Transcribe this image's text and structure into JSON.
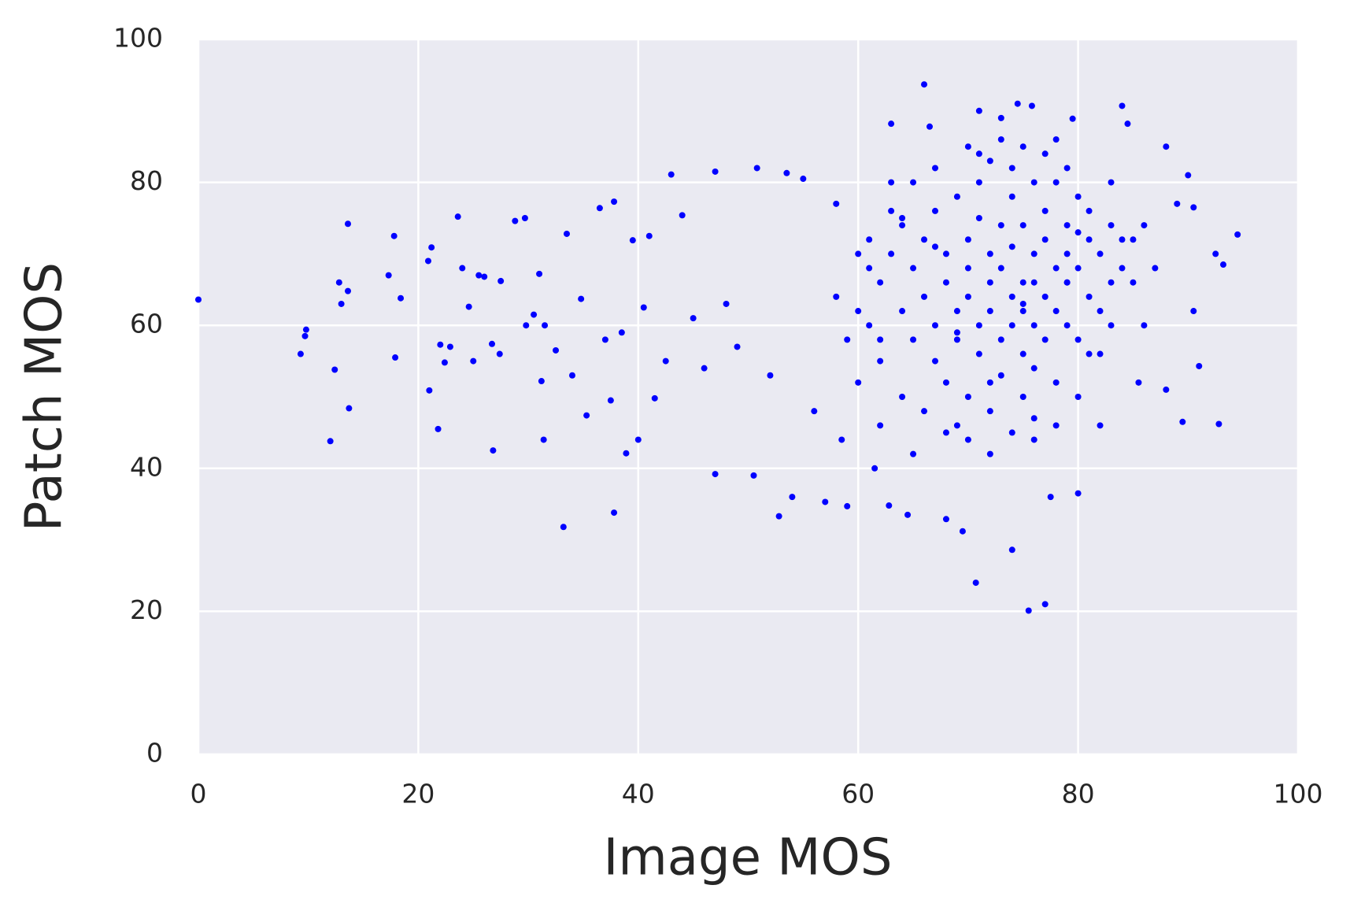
{
  "chart_data": {
    "type": "scatter",
    "xlabel": "Image MOS",
    "ylabel": "Patch MOS",
    "xlim": [
      0,
      100
    ],
    "ylim": [
      0,
      100
    ],
    "xticks": [
      0,
      20,
      40,
      60,
      80,
      100
    ],
    "yticks": [
      0,
      20,
      40,
      60,
      80,
      100
    ],
    "grid": true,
    "color": "#0000ff",
    "x": [
      0,
      9.3,
      9.7,
      9.8,
      12,
      12.4,
      12.8,
      13,
      13.6,
      13.6,
      13.7,
      17.3,
      17.8,
      17.9,
      18.4,
      20.9,
      21,
      21.2,
      21.8,
      22,
      22.4,
      22.9,
      23.6,
      24,
      24.6,
      25,
      25.5,
      26,
      26.7,
      26.8,
      27.4,
      27.5,
      28.8,
      29.7,
      29.8,
      30.5,
      31,
      31.2,
      31.4,
      31.5,
      32.5,
      33.2,
      33.5,
      34,
      34.8,
      35.3,
      36.5,
      37,
      37.5,
      37.8,
      37.8,
      38.5,
      38.9,
      39.5,
      40,
      40.5,
      41,
      41.5,
      42.5,
      43,
      44,
      45,
      46,
      47,
      47,
      48,
      49,
      50.5,
      50.8,
      52,
      52.8,
      53.5,
      54,
      55,
      56,
      57,
      58,
      58.5,
      59,
      60,
      61,
      61.5,
      62,
      62.8,
      63,
      64,
      64.5,
      65,
      66,
      66.5,
      67,
      68,
      69,
      69.5,
      70,
      70.7,
      71,
      72,
      73,
      74,
      74.5,
      75,
      75.5,
      75.8,
      76,
      77,
      77.5,
      78,
      79,
      79.5,
      80,
      80,
      81,
      82,
      83,
      84,
      84.5,
      85,
      85.5,
      86,
      87,
      88,
      88,
      89,
      89.5,
      90,
      90.5,
      90.5,
      91,
      92.5,
      92.8,
      93.2,
      94.5,
      62,
      63,
      64,
      64,
      65,
      65,
      66,
      66,
      67,
      67,
      67,
      68,
      68,
      68,
      69,
      69,
      69,
      70,
      70,
      70,
      70,
      71,
      71,
      71,
      71,
      72,
      72,
      72,
      72,
      72,
      73,
      73,
      73,
      73,
      74,
      74,
      74,
      74,
      74,
      75,
      75,
      75,
      75,
      75,
      76,
      76,
      76,
      76,
      76,
      77,
      77,
      77,
      77,
      78,
      78,
      78,
      78,
      79,
      79,
      79,
      79,
      80,
      80,
      80,
      81,
      81,
      81,
      82,
      82,
      83,
      83,
      84,
      84,
      60,
      61,
      61,
      62,
      63,
      64,
      65,
      66,
      67,
      68,
      69,
      70,
      71,
      72,
      73,
      74,
      75,
      76,
      77,
      78,
      79,
      80,
      82,
      83,
      85,
      86,
      58,
      59,
      60,
      62,
      63
    ],
    "y": [
      63.6,
      56,
      58.5,
      59.4,
      43.8,
      53.8,
      66,
      63,
      74.2,
      64.8,
      48.4,
      67,
      72.5,
      55.5,
      63.8,
      69,
      50.9,
      70.9,
      45.5,
      57.3,
      54.8,
      57,
      75.2,
      68,
      62.6,
      55,
      67,
      66.8,
      57.4,
      42.5,
      56,
      66.2,
      74.6,
      75,
      60,
      61.5,
      67.2,
      52.2,
      44,
      60,
      56.5,
      31.8,
      72.8,
      53,
      63.7,
      47.4,
      76.4,
      58,
      49.5,
      77.3,
      33.8,
      59,
      42.1,
      71.9,
      44,
      62.5,
      72.5,
      49.8,
      55,
      81.1,
      75.4,
      61,
      54,
      81.5,
      39.2,
      63,
      57,
      39,
      82,
      53,
      33.3,
      81.3,
      36,
      80.5,
      48,
      35.3,
      77,
      44,
      34.7,
      70,
      60,
      40,
      55,
      34.8,
      88.2,
      75,
      33.5,
      42,
      93.7,
      87.8,
      71,
      32.9,
      59,
      31.2,
      85,
      24,
      90,
      52,
      89,
      28.6,
      91,
      63,
      20.1,
      90.7,
      44,
      21,
      36,
      86,
      66,
      88.9,
      73,
      36.5,
      56,
      46,
      80,
      90.7,
      88.2,
      72,
      52,
      60,
      68,
      85,
      51,
      77,
      46.5,
      81,
      76.5,
      62,
      54.3,
      70,
      46.2,
      68.5,
      72.7,
      66,
      70,
      62,
      74,
      58,
      68,
      64,
      72,
      60,
      76,
      55,
      66,
      70,
      52,
      62,
      78,
      58,
      68,
      72,
      50,
      64,
      60,
      75,
      80,
      56,
      66,
      70,
      62,
      48,
      83,
      58,
      74,
      68,
      53,
      64,
      78,
      60,
      71,
      82,
      66,
      56,
      74,
      50,
      62,
      70,
      60,
      80,
      66,
      54,
      72,
      64,
      76,
      58,
      68,
      62,
      80,
      52,
      70,
      74,
      60,
      66,
      68,
      78,
      58,
      72,
      64,
      76,
      70,
      62,
      74,
      66,
      68,
      72,
      62,
      68,
      72,
      58,
      76,
      50,
      80,
      48,
      82,
      45,
      46,
      44,
      84,
      42,
      86,
      45,
      85,
      47,
      84,
      46,
      82,
      50,
      56,
      60,
      66,
      74,
      64,
      58,
      52,
      46,
      80
    ]
  }
}
